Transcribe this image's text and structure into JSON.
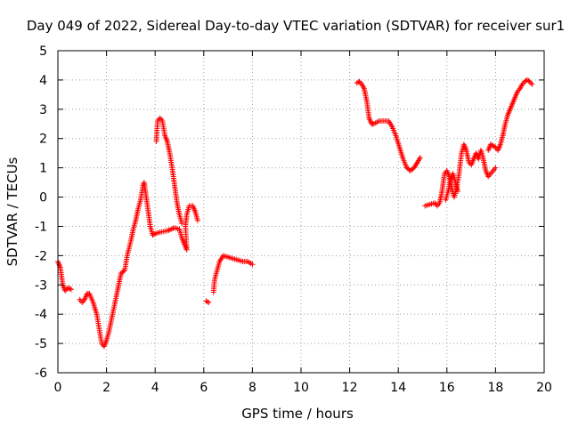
{
  "chart_data": {
    "type": "scatter",
    "title": "Day 049 of 2022, Sidereal Day-to-day VTEC variation (SDTVAR) for receiver sur1",
    "xlabel": "GPS time / hours",
    "ylabel": "SDTVAR / TECUs",
    "xlim": [
      0,
      20
    ],
    "ylim": [
      -6,
      5
    ],
    "xticks": [
      0,
      2,
      4,
      6,
      8,
      10,
      12,
      14,
      16,
      18,
      20
    ],
    "yticks": [
      -6,
      -5,
      -4,
      -3,
      -2,
      -1,
      0,
      1,
      2,
      3,
      4,
      5
    ],
    "grid": true,
    "marker": "+",
    "marker_color": "#ff0000",
    "series": [
      {
        "name": "SDTVAR",
        "segments": [
          [
            [
              0.0,
              -2.2
            ],
            [
              0.1,
              -2.4
            ],
            [
              0.2,
              -3.0
            ],
            [
              0.3,
              -3.2
            ],
            [
              0.4,
              -3.1
            ],
            [
              0.55,
              -3.15
            ]
          ],
          [
            [
              0.9,
              -3.5
            ],
            [
              1.0,
              -3.6
            ],
            [
              1.1,
              -3.5
            ],
            [
              1.2,
              -3.3
            ],
            [
              1.3,
              -3.3
            ],
            [
              1.45,
              -3.6
            ],
            [
              1.6,
              -4.0
            ],
            [
              1.7,
              -4.5
            ],
            [
              1.8,
              -5.0
            ],
            [
              1.9,
              -5.1
            ],
            [
              2.0,
              -4.9
            ],
            [
              2.1,
              -4.6
            ],
            [
              2.25,
              -4.0
            ],
            [
              2.4,
              -3.4
            ],
            [
              2.5,
              -3.0
            ],
            [
              2.6,
              -2.6
            ],
            [
              2.75,
              -2.5
            ],
            [
              2.85,
              -2.0
            ],
            [
              3.0,
              -1.5
            ],
            [
              3.1,
              -1.1
            ],
            [
              3.2,
              -0.8
            ],
            [
              3.3,
              -0.4
            ],
            [
              3.4,
              -0.1
            ],
            [
              3.5,
              0.4
            ],
            [
              3.55,
              0.5
            ],
            [
              3.6,
              0.2
            ],
            [
              3.7,
              -0.4
            ],
            [
              3.8,
              -1.0
            ],
            [
              3.9,
              -1.3
            ],
            [
              4.0,
              -1.25
            ],
            [
              4.2,
              -1.2
            ],
            [
              4.5,
              -1.15
            ],
            [
              4.8,
              -1.05
            ],
            [
              5.0,
              -1.1
            ],
            [
              5.1,
              -1.4
            ],
            [
              5.2,
              -1.6
            ],
            [
              5.3,
              -1.8
            ],
            [
              5.25,
              -1.0
            ],
            [
              5.3,
              -0.6
            ],
            [
              5.4,
              -0.3
            ],
            [
              5.55,
              -0.3
            ],
            [
              5.65,
              -0.5
            ],
            [
              5.75,
              -0.8
            ]
          ],
          [
            [
              4.05,
              1.9
            ],
            [
              4.1,
              2.6
            ],
            [
              4.2,
              2.7
            ],
            [
              4.3,
              2.6
            ],
            [
              4.4,
              2.1
            ],
            [
              4.5,
              1.9
            ],
            [
              4.6,
              1.5
            ],
            [
              4.7,
              1.0
            ],
            [
              4.8,
              0.4
            ],
            [
              4.9,
              -0.2
            ],
            [
              5.0,
              -0.6
            ],
            [
              5.1,
              -0.9
            ]
          ],
          [
            [
              6.1,
              -3.55
            ],
            [
              6.2,
              -3.6
            ]
          ],
          [
            [
              6.4,
              -3.25
            ],
            [
              6.45,
              -2.8
            ],
            [
              6.55,
              -2.5
            ],
            [
              6.65,
              -2.2
            ],
            [
              6.8,
              -2.0
            ],
            [
              7.0,
              -2.05
            ],
            [
              7.2,
              -2.1
            ],
            [
              7.4,
              -2.15
            ],
            [
              7.6,
              -2.2
            ],
            [
              7.8,
              -2.2
            ],
            [
              8.0,
              -2.3
            ]
          ],
          [
            [
              12.3,
              3.9
            ],
            [
              12.4,
              3.95
            ],
            [
              12.5,
              3.85
            ],
            [
              12.6,
              3.7
            ],
            [
              12.7,
              3.3
            ],
            [
              12.8,
              2.7
            ],
            [
              12.9,
              2.5
            ],
            [
              13.0,
              2.5
            ],
            [
              13.2,
              2.6
            ],
            [
              13.4,
              2.6
            ],
            [
              13.6,
              2.6
            ],
            [
              13.75,
              2.4
            ],
            [
              13.9,
              2.1
            ],
            [
              14.05,
              1.7
            ],
            [
              14.2,
              1.3
            ],
            [
              14.35,
              1.0
            ],
            [
              14.5,
              0.9
            ],
            [
              14.65,
              1.0
            ],
            [
              14.8,
              1.2
            ],
            [
              14.9,
              1.35
            ]
          ],
          [
            [
              15.1,
              -0.3
            ],
            [
              15.3,
              -0.25
            ],
            [
              15.5,
              -0.2
            ],
            [
              15.6,
              -0.3
            ],
            [
              15.7,
              -0.2
            ],
            [
              15.8,
              0.2
            ],
            [
              15.9,
              0.8
            ],
            [
              16.0,
              0.9
            ],
            [
              16.1,
              0.7
            ],
            [
              16.2,
              0.3
            ],
            [
              16.3,
              0.0
            ],
            [
              16.4,
              0.3
            ],
            [
              16.5,
              0.8
            ],
            [
              16.6,
              1.5
            ],
            [
              16.7,
              1.8
            ],
            [
              16.8,
              1.6
            ],
            [
              16.9,
              1.2
            ],
            [
              17.0,
              1.1
            ],
            [
              17.1,
              1.3
            ],
            [
              17.2,
              1.5
            ],
            [
              17.3,
              1.3
            ],
            [
              17.4,
              1.6
            ],
            [
              17.5,
              1.3
            ],
            [
              17.6,
              0.9
            ],
            [
              17.7,
              0.7
            ],
            [
              17.8,
              0.8
            ],
            [
              17.9,
              0.9
            ],
            [
              18.0,
              1.0
            ]
          ],
          [
            [
              17.7,
              1.6
            ],
            [
              17.8,
              1.8
            ],
            [
              17.9,
              1.75
            ],
            [
              18.0,
              1.7
            ],
            [
              18.1,
              1.6
            ],
            [
              18.2,
              1.8
            ],
            [
              18.3,
              2.1
            ],
            [
              18.4,
              2.5
            ],
            [
              18.5,
              2.8
            ],
            [
              18.6,
              3.0
            ],
            [
              18.7,
              3.2
            ],
            [
              18.8,
              3.4
            ],
            [
              18.9,
              3.6
            ],
            [
              19.0,
              3.7
            ],
            [
              19.1,
              3.85
            ],
            [
              19.2,
              3.95
            ],
            [
              19.3,
              4.0
            ],
            [
              19.4,
              3.95
            ],
            [
              19.5,
              3.85
            ]
          ],
          [
            [
              15.95,
              -0.1
            ],
            [
              16.05,
              0.2
            ],
            [
              16.15,
              0.6
            ],
            [
              16.25,
              0.8
            ],
            [
              16.35,
              0.5
            ],
            [
              16.45,
              0.2
            ]
          ]
        ]
      }
    ]
  }
}
